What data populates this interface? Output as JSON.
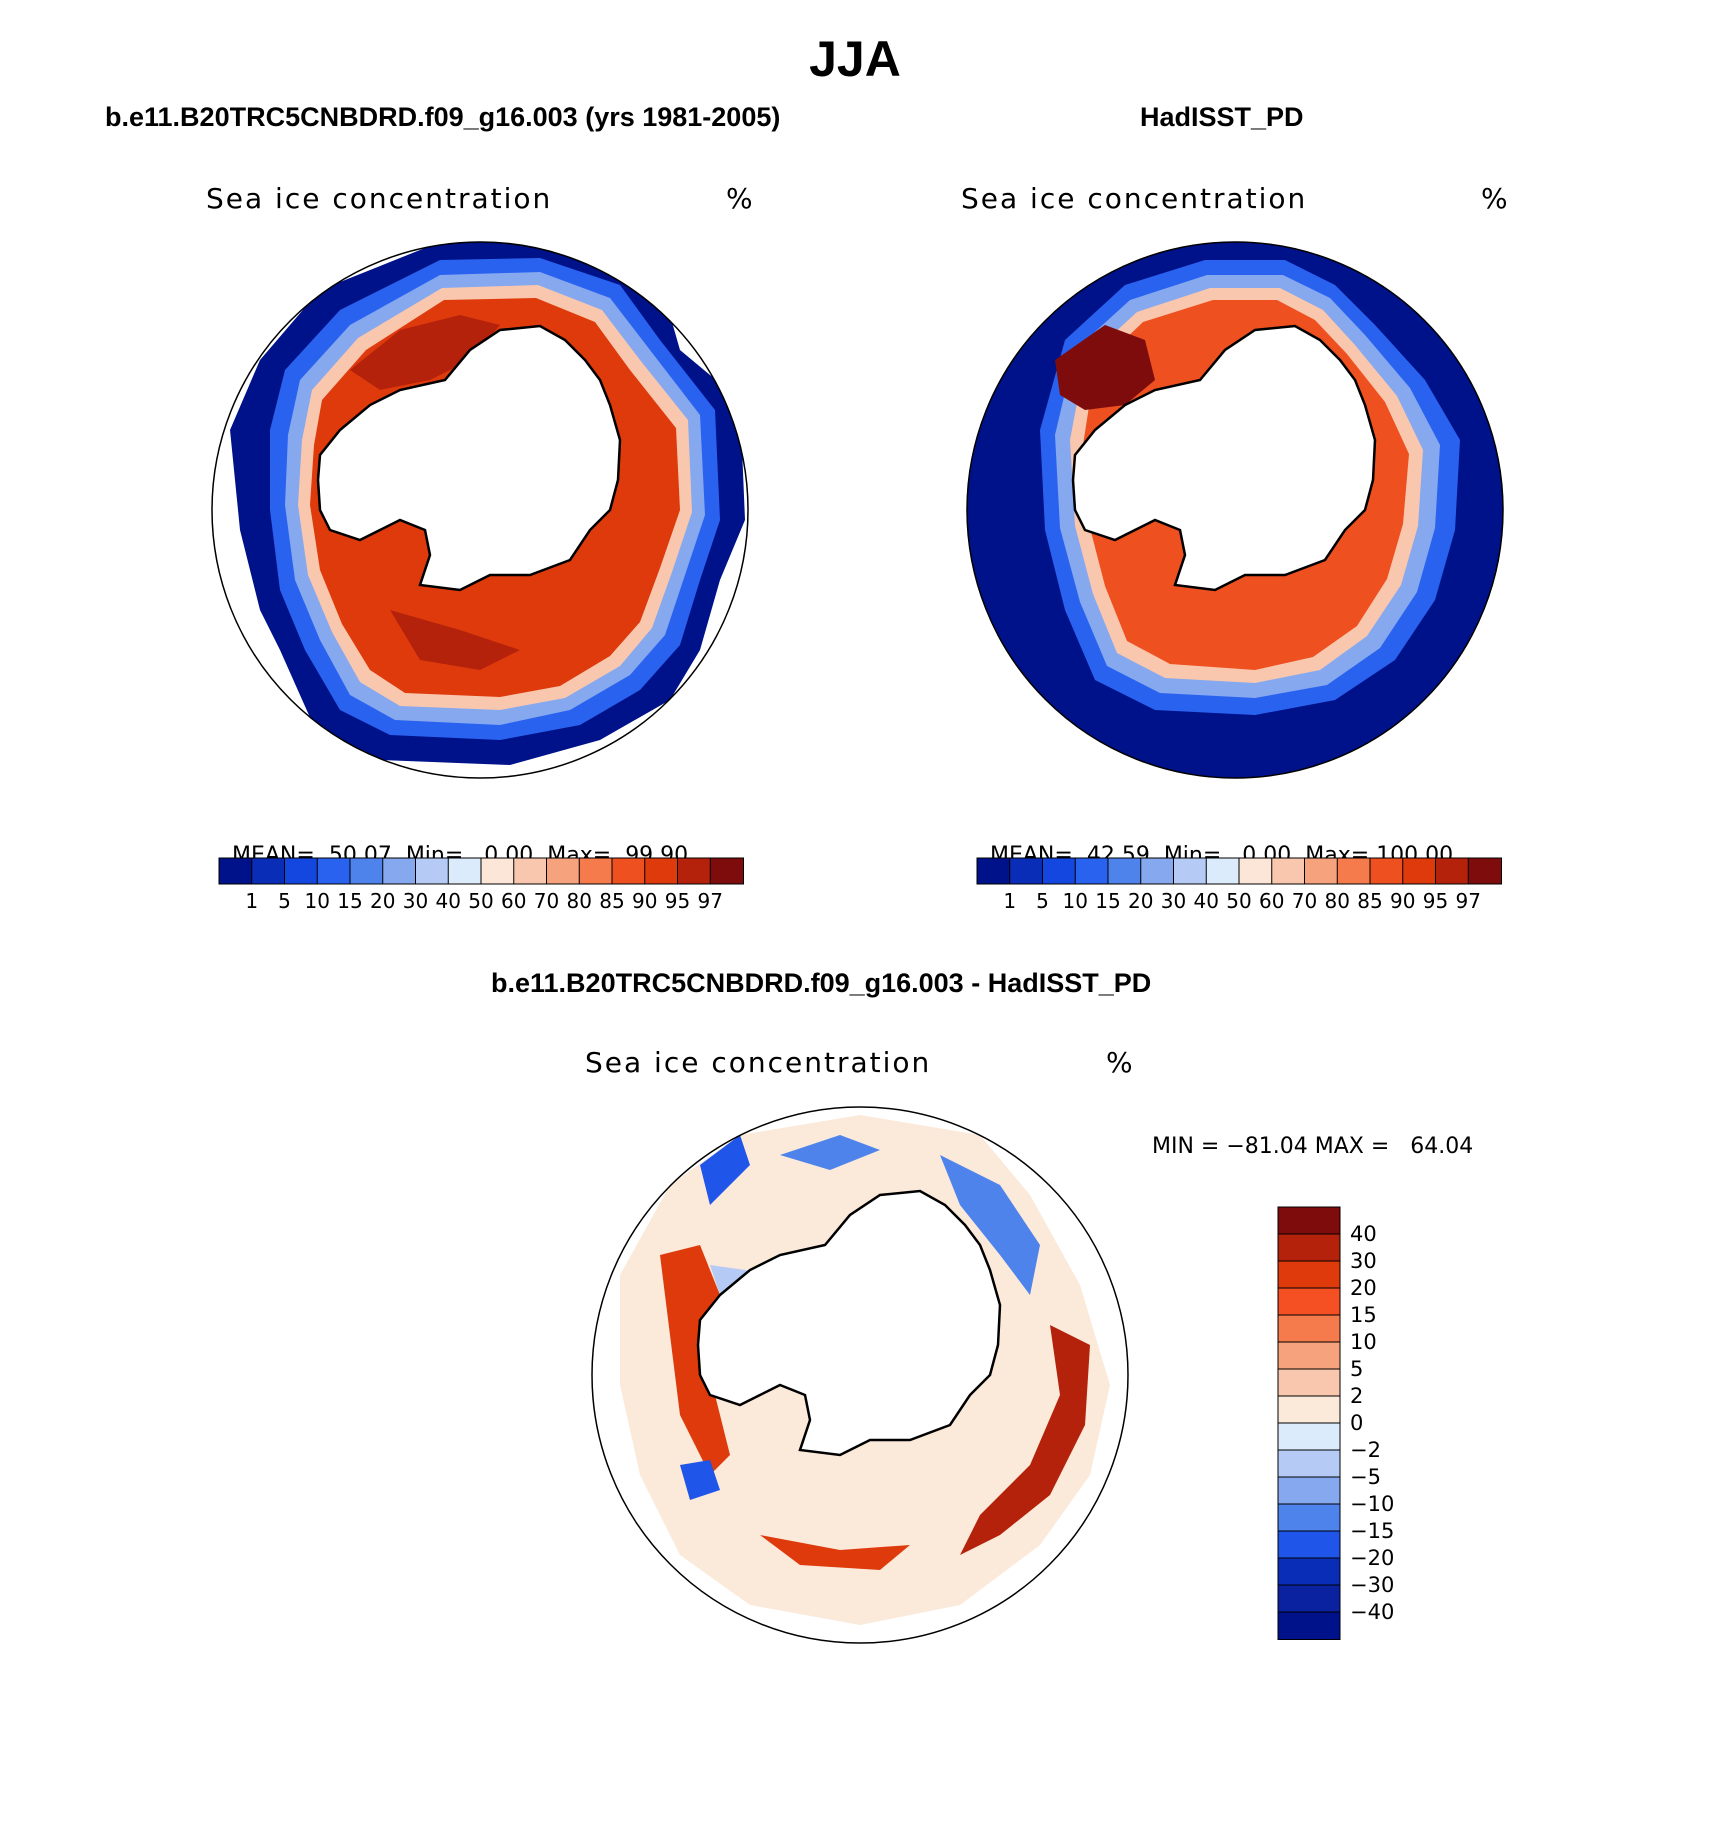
{
  "title": "JJA",
  "panels": [
    {
      "title": "b.e11.B20TRC5CNBDRD.f09_g16.003 (yrs 1981-2005)",
      "variable": "Sea ice concentration",
      "units": "%",
      "stats": {
        "mean_label": "MEAN=",
        "mean": "50.07",
        "min_label": "Min=",
        "min": "0.00",
        "max_label": "Max=",
        "max": "99.90"
      }
    },
    {
      "title": "HadISST_PD",
      "variable": "Sea ice concentration",
      "units": "%",
      "stats": {
        "mean_label": "MEAN=",
        "mean": "42.59",
        "min_label": "Min=",
        "min": "0.00",
        "max_label": "Max=",
        "max": "100.00"
      }
    }
  ],
  "abs_colorbar": {
    "levels": [
      "1",
      "5",
      "10",
      "15",
      "20",
      "30",
      "40",
      "50",
      "60",
      "70",
      "80",
      "85",
      "90",
      "95",
      "97"
    ],
    "colors": [
      "#00128a",
      "#0a2db8",
      "#1446e0",
      "#2a62f0",
      "#4f83ec",
      "#86a8ee",
      "#b5cbf5",
      "#dcebfb",
      "#fbe6d7",
      "#f9c7ae",
      "#f6a27d",
      "#f57a4c",
      "#ee5020",
      "#de3a0c",
      "#b5220b",
      "#7e0c0c"
    ]
  },
  "diff_panel": {
    "title": "b.e11.B20TRC5CNBDRD.f09_g16.003 - HadISST_PD",
    "variable": "Sea ice concentration",
    "units": "%",
    "minmax": "MIN = −81.04 MAX =   64.04",
    "colorbar": {
      "levels": [
        "40",
        "30",
        "20",
        "15",
        "10",
        "5",
        "2",
        "0",
        "−2",
        "−5",
        "−10",
        "−15",
        "−20",
        "−30",
        "−40"
      ],
      "colors": [
        "#7e0c0c",
        "#b5220b",
        "#de3a0c",
        "#f55023",
        "#f57a4c",
        "#f6a27d",
        "#f9c7ae",
        "#fbe9da",
        "#dcebfb",
        "#b5cbf5",
        "#86a8ee",
        "#4f83ec",
        "#1f55e8",
        "#0a2db8",
        "#0a22a0",
        "#00128a"
      ]
    }
  }
}
